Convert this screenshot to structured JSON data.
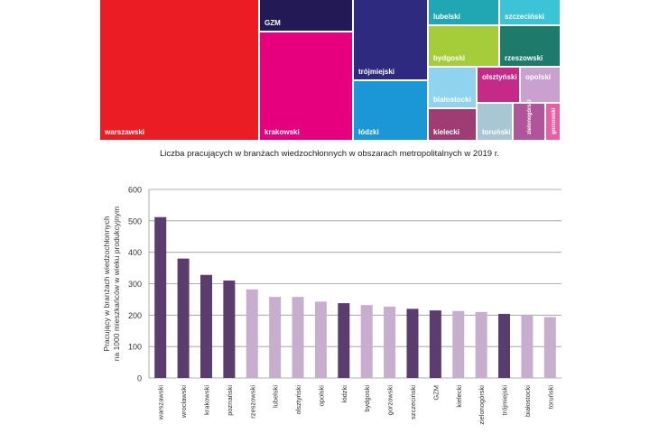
{
  "treemap": {
    "tiles": [
      {
        "label": "warszawski",
        "color": "#ec1c24"
      },
      {
        "label": "GZM",
        "color": "#231a55"
      },
      {
        "label": "krakowski",
        "color": "#e6007e"
      },
      {
        "label": "trójmiejski",
        "color": "#2d2a7f"
      },
      {
        "label": "łódzki",
        "color": "#1b97d6"
      },
      {
        "label": "lubelski",
        "color": "#21a7b4"
      },
      {
        "label": "szczeciński",
        "color": "#3bc4d6"
      },
      {
        "label": "bydgoski",
        "color": "#a5cd39"
      },
      {
        "label": "rzeszowski",
        "color": "#1e7a6b"
      },
      {
        "label": "białostocki",
        "color": "#8fd3ef"
      },
      {
        "label": "olsztyński",
        "color": "#c62a88"
      },
      {
        "label": "opolski",
        "color": "#c9a0cf"
      },
      {
        "label": "kielecki",
        "color": "#a03c74"
      },
      {
        "label": "toruński",
        "color": "#a7c7d5"
      },
      {
        "label": "zielonogórski",
        "color": "#b0559a"
      },
      {
        "label": "gorzowski",
        "color": "#e85fa3"
      }
    ]
  },
  "caption": "Liczba pracujących w branżach wiedzochłonnych w obszarach metropolitalnych w 2019 r.",
  "chart_data": {
    "type": "bar",
    "ylabel": "Pracujący w branżach wiedzochłonnych na 1000 mieszkańców w wieku produkcyjnym",
    "ylim": [
      0,
      600
    ],
    "yticks": [
      0,
      100,
      200,
      300,
      400,
      500,
      600
    ],
    "grid": true,
    "categories": [
      "warszawski",
      "wrocławski",
      "krakowski",
      "poznański",
      "rzeszowski",
      "lubelski",
      "olsztyński",
      "opolski",
      "łódzki",
      "bydgoski",
      "gorzowski",
      "szczeciński",
      "GZM",
      "kielecki",
      "zielonogórski",
      "trójmiejski",
      "białostocki",
      "toruński"
    ],
    "values": [
      512,
      380,
      328,
      310,
      282,
      258,
      258,
      243,
      238,
      232,
      227,
      220,
      215,
      213,
      210,
      204,
      198,
      194
    ],
    "bar_colors": [
      "#5b3c6e",
      "#5b3c6e",
      "#5b3c6e",
      "#5b3c6e",
      "#c7aecf",
      "#c7aecf",
      "#c7aecf",
      "#c7aecf",
      "#5b3c6e",
      "#c7aecf",
      "#c7aecf",
      "#5b3c6e",
      "#5b3c6e",
      "#c7aecf",
      "#c7aecf",
      "#5b3c6e",
      "#c7aecf",
      "#c7aecf"
    ]
  }
}
